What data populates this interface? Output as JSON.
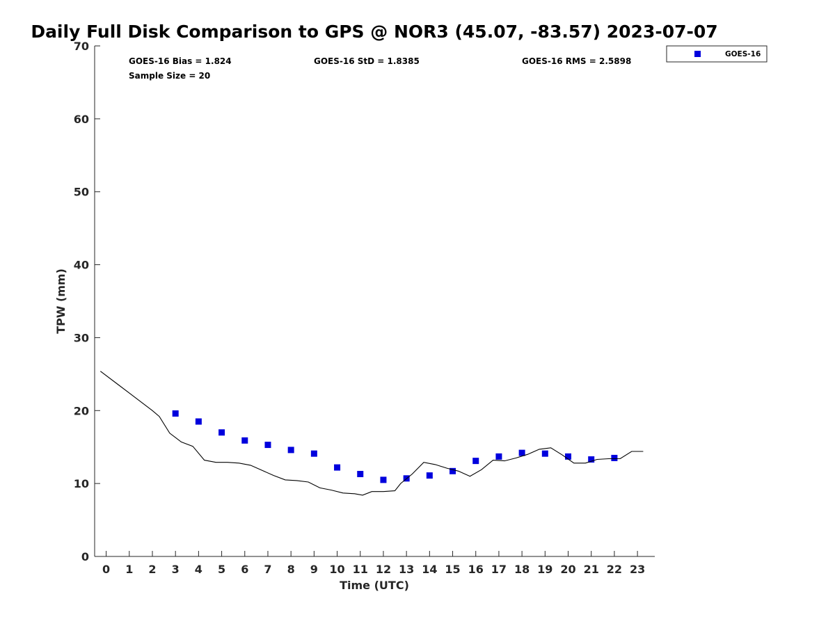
{
  "chart_data": {
    "type": "scatter",
    "title": "Daily Full Disk Comparison to GPS @ NOR3 (45.07, -83.57) 2023-07-07",
    "xlabel": "Time (UTC)",
    "ylabel": "TPW (mm)",
    "xlim": [
      -0.5,
      23.75
    ],
    "ylim": [
      0,
      70
    ],
    "x_ticks": [
      0,
      1,
      2,
      3,
      4,
      5,
      6,
      7,
      8,
      9,
      10,
      11,
      12,
      13,
      14,
      15,
      16,
      17,
      18,
      19,
      20,
      21,
      22,
      23
    ],
    "y_ticks": [
      0,
      10,
      20,
      30,
      40,
      50,
      60,
      70
    ],
    "grid": false,
    "legend_position": "top-right, outside plot",
    "legend": [
      {
        "name": "GOES-16",
        "marker": "square",
        "color": "#0000dd"
      }
    ],
    "stats": {
      "bias": "GOES-16 Bias = 1.824",
      "std": "GOES-16 StD = 1.8385",
      "rms": "GOES-16 RMS = 2.5898",
      "sample_size": "Sample Size = 20"
    },
    "series": [
      {
        "name": "GOES-16",
        "type": "scatter",
        "color": "#0000dd",
        "x": [
          3,
          4,
          5,
          6,
          7,
          8,
          9,
          10,
          11,
          12,
          13,
          14,
          15,
          16,
          17,
          18,
          19,
          20,
          21,
          22
        ],
        "y": [
          19.6,
          18.5,
          17.0,
          15.9,
          15.3,
          14.6,
          14.1,
          12.2,
          11.3,
          10.5,
          10.7,
          11.1,
          11.7,
          13.1,
          13.7,
          14.2,
          14.1,
          13.7,
          13.3,
          13.5
        ]
      },
      {
        "type": "line",
        "color": "#000000",
        "x": [
          -0.25,
          0.5,
          1.0,
          1.5,
          2.0,
          2.3,
          2.75,
          3.25,
          3.75,
          4.25,
          4.75,
          5.25,
          5.75,
          6.25,
          6.75,
          7.25,
          7.75,
          8.25,
          8.75,
          9.25,
          9.75,
          10.25,
          10.75,
          11.1,
          11.5,
          12.0,
          12.5,
          12.75,
          13.25,
          13.75,
          14.25,
          14.75,
          15.25,
          15.75,
          16.25,
          16.75,
          17.25,
          17.75,
          18.25,
          18.75,
          19.25,
          19.75,
          20.25,
          20.75,
          21.25,
          21.75,
          22.25,
          22.75,
          23.25
        ],
        "y": [
          25.4,
          23.6,
          22.4,
          21.2,
          20.0,
          19.2,
          16.9,
          15.7,
          15.1,
          13.2,
          12.9,
          12.9,
          12.8,
          12.5,
          11.8,
          11.1,
          10.5,
          10.4,
          10.2,
          9.4,
          9.1,
          8.7,
          8.6,
          8.4,
          8.9,
          8.9,
          9.0,
          10.0,
          11.3,
          12.9,
          12.6,
          12.1,
          11.7,
          11.0,
          11.9,
          13.2,
          13.1,
          13.5,
          14.0,
          14.7,
          14.9,
          13.9,
          12.8,
          12.8,
          13.3,
          13.4,
          13.4,
          14.4,
          14.4
        ]
      }
    ]
  }
}
